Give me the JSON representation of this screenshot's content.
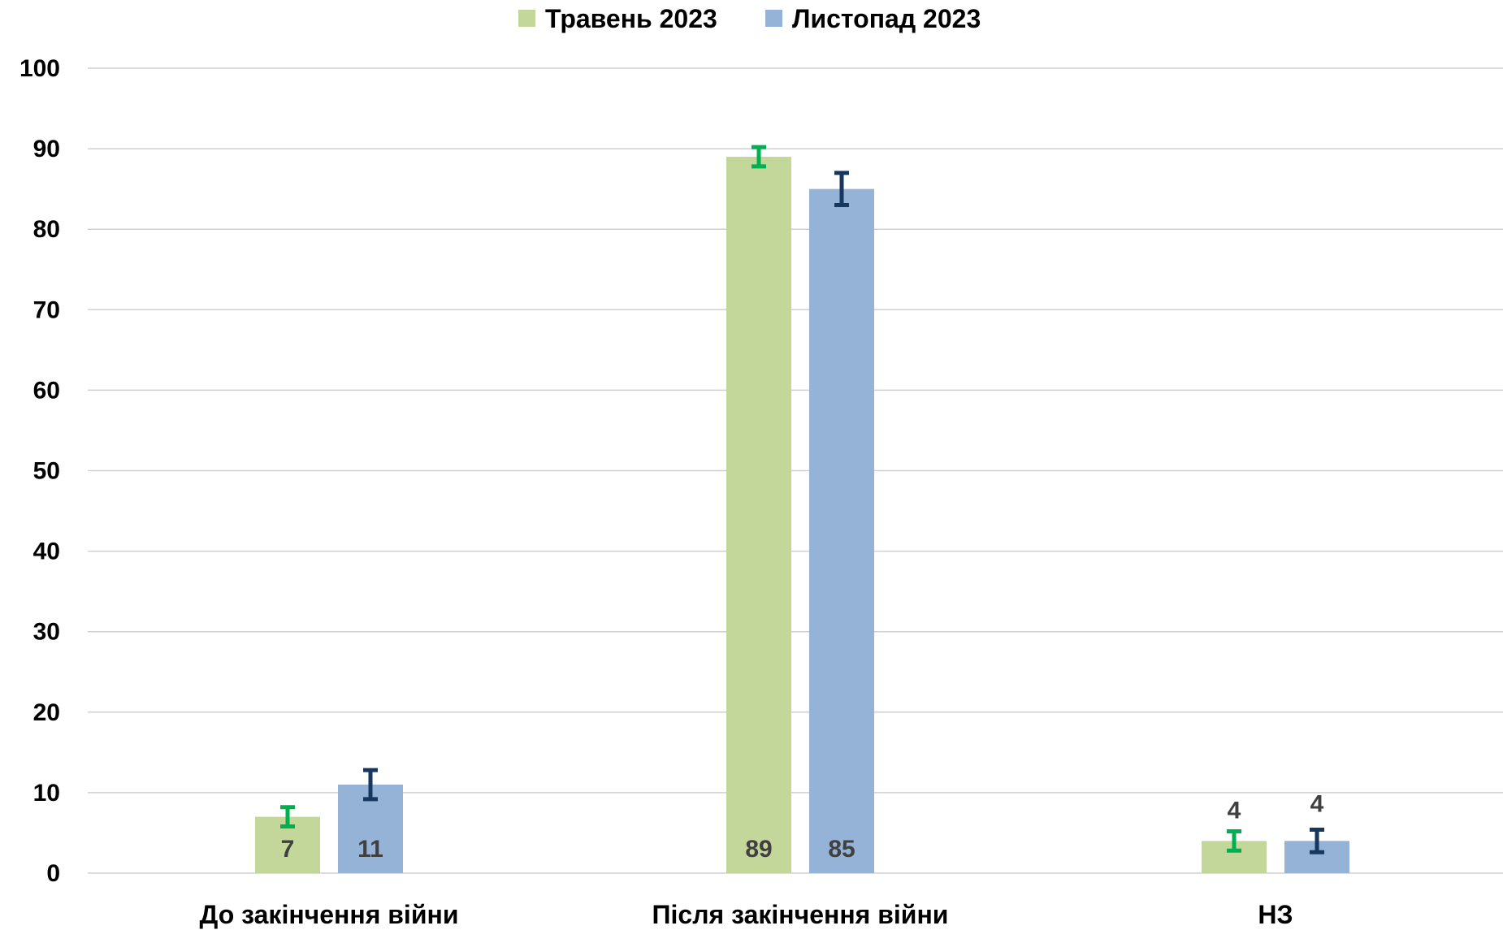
{
  "chart_data": {
    "type": "bar",
    "categories": [
      "До закінчення війни",
      "Після закінчення війни",
      "НЗ"
    ],
    "series": [
      {
        "name": "Травень 2023",
        "values": [
          7,
          89,
          4
        ],
        "error": [
          1.2,
          1.2,
          1.2
        ],
        "color": "#c4d79b",
        "error_color": "#00b050"
      },
      {
        "name": "Листопад 2023",
        "values": [
          11,
          85,
          4
        ],
        "error": [
          1.8,
          2.0,
          1.4
        ],
        "color": "#95b3d7",
        "error_color": "#17375e"
      }
    ],
    "ylim": [
      0,
      100
    ],
    "yticks": [
      "0",
      "10",
      "20",
      "30",
      "40",
      "50",
      "60",
      "70",
      "80",
      "90",
      "100"
    ],
    "grid": true,
    "legend_position": "top",
    "gridline_color": "#d0d0d0",
    "label_color": "#404040"
  }
}
